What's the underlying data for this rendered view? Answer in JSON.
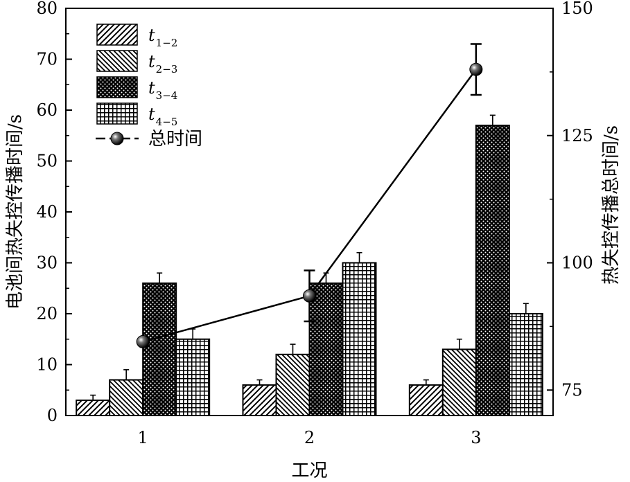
{
  "chart_data": {
    "type": "bar",
    "categories": [
      "1",
      "2",
      "3"
    ],
    "xlabel": "工况",
    "ylabel_left": "电池间热失控传播时间/s",
    "ylabel_right": "热失控传播总时间/s",
    "ylim_left": [
      0,
      80
    ],
    "yticks_left": [
      "0",
      "10",
      "20",
      "30",
      "40",
      "50",
      "60",
      "70",
      "80"
    ],
    "ylim_right": [
      70,
      150
    ],
    "yticks_right": [
      "75",
      "100",
      "125",
      "150"
    ],
    "legend_position": "top-left",
    "grid": false,
    "series": [
      {
        "name_main": "t",
        "name_sub": "1−2",
        "pattern": "diag-right",
        "values": [
          3,
          6,
          6
        ],
        "errors": [
          1,
          1,
          1
        ]
      },
      {
        "name_main": "t",
        "name_sub": "2−3",
        "pattern": "diag-left",
        "values": [
          7,
          12,
          13
        ],
        "errors": [
          2,
          2,
          2
        ]
      },
      {
        "name_main": "t",
        "name_sub": "3−4",
        "pattern": "dots",
        "values": [
          26,
          26,
          57
        ],
        "errors": [
          2,
          2,
          2
        ]
      },
      {
        "name_main": "t",
        "name_sub": "4−5",
        "pattern": "grid",
        "values": [
          15,
          30,
          20
        ],
        "errors": [
          2,
          2,
          2
        ]
      }
    ],
    "line_series": {
      "name": "总时间",
      "axis": "right",
      "values": [
        84.5,
        93.5,
        138
      ],
      "errors": [
        0,
        5,
        5
      ]
    }
  }
}
